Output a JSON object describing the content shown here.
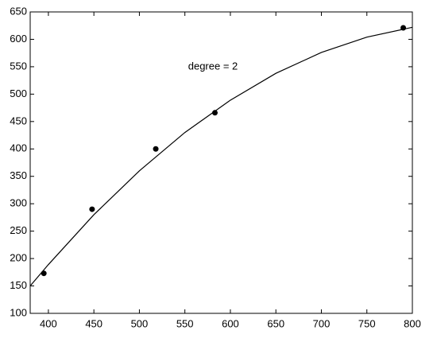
{
  "chart_data": {
    "type": "scatter",
    "annotation": "degree = 2",
    "xlim": [
      380,
      800
    ],
    "ylim": [
      100,
      650
    ],
    "xticks": [
      400,
      450,
      500,
      550,
      600,
      650,
      700,
      750,
      800
    ],
    "yticks": [
      100,
      150,
      200,
      250,
      300,
      350,
      400,
      450,
      500,
      550,
      600,
      650
    ],
    "series": [
      {
        "type": "scatter",
        "color": "#000000",
        "x": [
          395,
          448,
          518,
          583,
          790
        ],
        "values": [
          173,
          290,
          400,
          466,
          621
        ]
      },
      {
        "type": "line",
        "color": "#000000",
        "x": [
          380,
          400,
          450,
          500,
          550,
          600,
          650,
          700,
          750,
          800
        ],
        "values": [
          150,
          189,
          280,
          360,
          430,
          489,
          538,
          576,
          604,
          622
        ]
      }
    ]
  }
}
